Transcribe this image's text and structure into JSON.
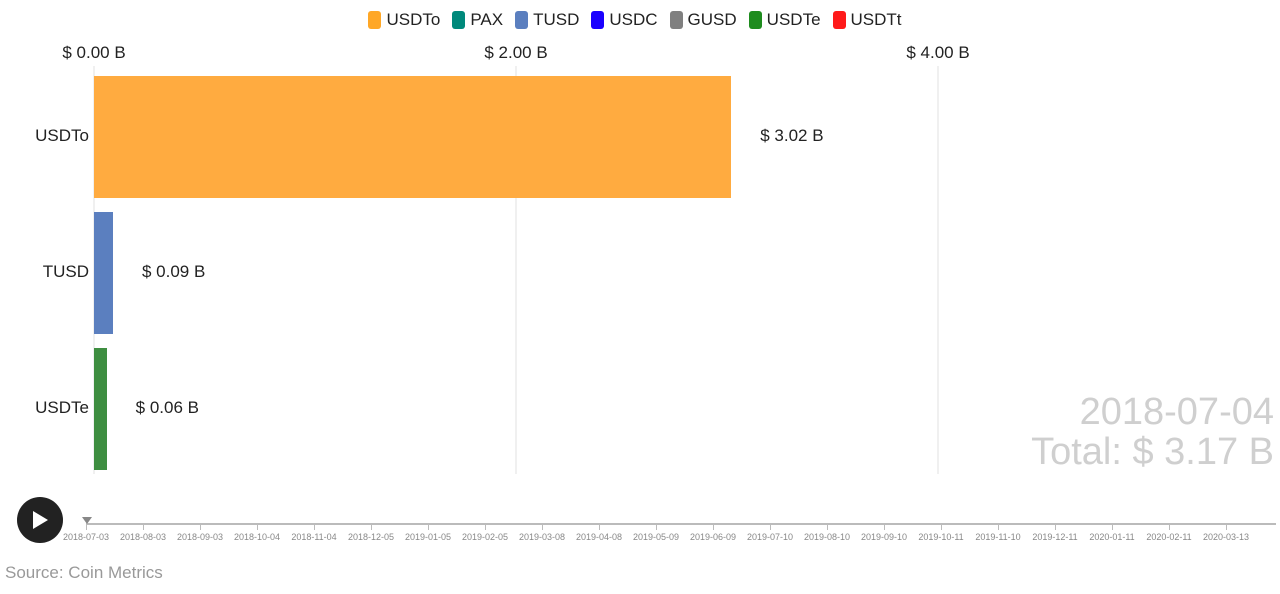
{
  "legend": [
    {
      "label": "USDTo",
      "color": "#FFA726"
    },
    {
      "label": "PAX",
      "color": "#00897B"
    },
    {
      "label": "TUSD",
      "color": "#5B7FBF"
    },
    {
      "label": "USDC",
      "color": "#1A00FF"
    },
    {
      "label": "GUSD",
      "color": "#808080"
    },
    {
      "label": "USDTe",
      "color": "#1E8C1E"
    },
    {
      "label": "USDTt",
      "color": "#FF1A1A"
    }
  ],
  "chart_data": {
    "type": "bar",
    "orientation": "horizontal",
    "categories": [
      "USDTo",
      "TUSD",
      "USDTe"
    ],
    "values": [
      3.02,
      0.09,
      0.06
    ],
    "value_labels": [
      "$ 3.02 B",
      "$ 0.09 B",
      "$ 0.06 B"
    ],
    "bar_colors": [
      "#FFAB40",
      "#5B7FBF",
      "#3E8E41"
    ],
    "xlim": [
      0,
      5
    ],
    "xticks": [
      0,
      2,
      4
    ],
    "xtick_labels": [
      "$ 0.00 B",
      "$ 2.00 B",
      "$ 4.00 B"
    ],
    "axis_position": "top",
    "grid": true
  },
  "overlay": {
    "date": "2018-07-04",
    "total": "Total: $ 3.17 B"
  },
  "timeline": {
    "labels": [
      "2018-07-03",
      "2018-08-03",
      "2018-09-03",
      "2018-10-04",
      "2018-11-04",
      "2018-12-05",
      "2019-01-05",
      "2019-02-05",
      "2019-03-08",
      "2019-04-08",
      "2019-05-09",
      "2019-06-09",
      "2019-07-10",
      "2019-08-10",
      "2019-09-10",
      "2019-10-11",
      "2019-11-10",
      "2019-12-11",
      "2020-01-11",
      "2020-02-11",
      "2020-03-13"
    ],
    "progress": 0
  },
  "controls": {
    "play_icon": "play-icon"
  },
  "source": "Source: Coin Metrics"
}
